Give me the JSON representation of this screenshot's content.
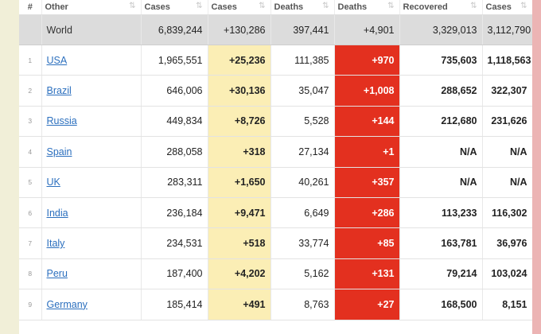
{
  "header": {
    "hash": "#",
    "columns": [
      "Other",
      "Cases",
      "Cases",
      "Deaths",
      "Deaths",
      "Recovered",
      "Cases"
    ],
    "sort_icon": "⇅"
  },
  "world": {
    "name": "World",
    "total_cases": "6,839,244",
    "new_cases": "+130,286",
    "total_deaths": "397,441",
    "new_deaths": "+4,901",
    "recovered": "3,329,013",
    "active_cases": "3,112,790"
  },
  "rows": [
    {
      "rank": "1",
      "country": "USA",
      "total_cases": "1,965,551",
      "new_cases": "+25,236",
      "total_deaths": "111,385",
      "new_deaths": "+970",
      "recovered": "735,603",
      "active_cases": "1,118,563"
    },
    {
      "rank": "2",
      "country": "Brazil",
      "total_cases": "646,006",
      "new_cases": "+30,136",
      "total_deaths": "35,047",
      "new_deaths": "+1,008",
      "recovered": "288,652",
      "active_cases": "322,307"
    },
    {
      "rank": "3",
      "country": "Russia",
      "total_cases": "449,834",
      "new_cases": "+8,726",
      "total_deaths": "5,528",
      "new_deaths": "+144",
      "recovered": "212,680",
      "active_cases": "231,626"
    },
    {
      "rank": "4",
      "country": "Spain",
      "total_cases": "288,058",
      "new_cases": "+318",
      "total_deaths": "27,134",
      "new_deaths": "+1",
      "recovered": "N/A",
      "active_cases": "N/A"
    },
    {
      "rank": "5",
      "country": "UK",
      "total_cases": "283,311",
      "new_cases": "+1,650",
      "total_deaths": "40,261",
      "new_deaths": "+357",
      "recovered": "N/A",
      "active_cases": "N/A"
    },
    {
      "rank": "6",
      "country": "India",
      "total_cases": "236,184",
      "new_cases": "+9,471",
      "total_deaths": "6,649",
      "new_deaths": "+286",
      "recovered": "113,233",
      "active_cases": "116,302"
    },
    {
      "rank": "7",
      "country": "Italy",
      "total_cases": "234,531",
      "new_cases": "+518",
      "total_deaths": "33,774",
      "new_deaths": "+85",
      "recovered": "163,781",
      "active_cases": "36,976"
    },
    {
      "rank": "8",
      "country": "Peru",
      "total_cases": "187,400",
      "new_cases": "+4,202",
      "total_deaths": "5,162",
      "new_deaths": "+131",
      "recovered": "79,214",
      "active_cases": "103,024"
    },
    {
      "rank": "9",
      "country": "Germany",
      "total_cases": "185,414",
      "new_cases": "+491",
      "total_deaths": "8,763",
      "new_deaths": "+27",
      "recovered": "168,500",
      "active_cases": "8,151"
    }
  ],
  "colors": {
    "new_cases_bg": "#fbeeb5",
    "new_deaths_bg": "#e3301f",
    "world_row_bg": "#dcdcdc",
    "country_link": "#2b6fbe"
  }
}
